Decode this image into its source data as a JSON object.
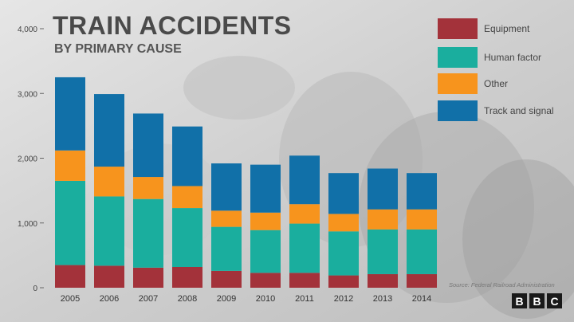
{
  "title": "TRAIN ACCIDENTS",
  "subtitle": "BY PRIMARY CAUSE",
  "source": "Source: Federal Railroad Administration",
  "logo": [
    "B",
    "B",
    "C"
  ],
  "colors": {
    "Equipment": "#a3323a",
    "Human factor": "#1aae9e",
    "Other": "#f7941d",
    "Track and signal": "#1170a8"
  },
  "chart_data": {
    "type": "bar",
    "stacked": true,
    "categories": [
      "2005",
      "2006",
      "2007",
      "2008",
      "2009",
      "2010",
      "2011",
      "2012",
      "2013",
      "2014"
    ],
    "series": [
      {
        "name": "Equipment",
        "values": [
          350,
          340,
          310,
          320,
          260,
          230,
          230,
          190,
          210,
          210
        ]
      },
      {
        "name": "Human factor",
        "values": [
          1300,
          1070,
          1060,
          910,
          680,
          660,
          760,
          680,
          690,
          690
        ]
      },
      {
        "name": "Other",
        "values": [
          470,
          460,
          340,
          340,
          250,
          270,
          300,
          270,
          310,
          310
        ]
      },
      {
        "name": "Track and signal",
        "values": [
          1130,
          1120,
          980,
          920,
          730,
          740,
          750,
          630,
          630,
          560
        ]
      }
    ],
    "yticks": [
      "0",
      "1,000",
      "2,000",
      "3,000",
      "4,000"
    ],
    "ylim": [
      0,
      4000
    ],
    "legend_position": "top-right",
    "grid": false
  }
}
